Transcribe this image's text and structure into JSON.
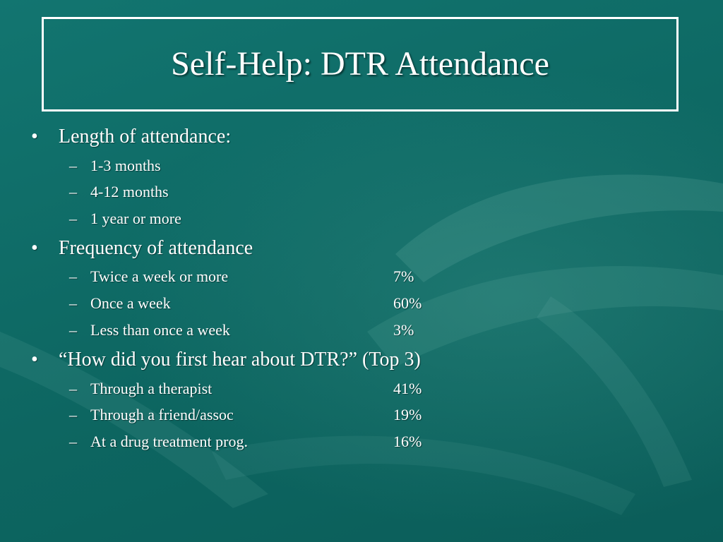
{
  "slide": {
    "title": "Self-Help:  DTR Attendance",
    "bullet_symbol": "•",
    "dash_symbol": "–",
    "sections": [
      {
        "heading": "Length of  attendance:",
        "items": [
          {
            "label": "1-3 months",
            "value": ""
          },
          {
            "label": "4-12 months",
            "value": ""
          },
          {
            "label": "1 year or more",
            "value": ""
          }
        ]
      },
      {
        "heading": "Frequency of  attendance",
        "items": [
          {
            "label": "Twice a week or more",
            "value": "7%"
          },
          {
            "label": "Once a week",
            "value": "60%"
          },
          {
            "label": "Less than once a week",
            "value": "3%"
          }
        ]
      },
      {
        "heading": "“How did you first hear about DTR?”  (Top 3)",
        "items": [
          {
            "label": "Through a therapist",
            "value": "41%"
          },
          {
            "label": "Through a friend/assoc",
            "value": "19%"
          },
          {
            "label": "At a drug treatment prog.",
            "value": "16%"
          }
        ]
      }
    ]
  },
  "colors": {
    "background": "#0f6b66",
    "text": "#ffffff"
  }
}
